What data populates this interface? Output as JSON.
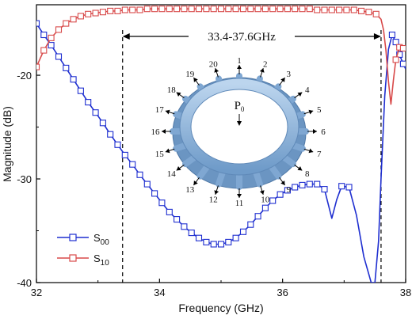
{
  "chart_data": {
    "type": "line",
    "xlabel": "Frequency (GHz)",
    "ylabel": "Magnitude (dB)",
    "xlim": [
      32,
      38
    ],
    "ylim": [
      -40,
      -13.2
    ],
    "xticks": [
      32,
      34,
      36,
      38
    ],
    "yticks": [
      -40,
      -30,
      -20
    ],
    "legend_position": "bottom-left",
    "series": [
      {
        "name": "S00",
        "name_base": "S",
        "name_sub": "00",
        "color": "#1f2fd0",
        "marker": "square",
        "x": [
          32.0,
          32.12,
          32.24,
          32.36,
          32.48,
          32.6,
          32.72,
          32.84,
          32.96,
          33.08,
          33.2,
          33.32,
          33.44,
          33.56,
          33.68,
          33.8,
          33.92,
          34.04,
          34.16,
          34.28,
          34.4,
          34.52,
          34.64,
          34.76,
          34.88,
          35.0,
          35.12,
          35.24,
          35.36,
          35.48,
          35.6,
          35.72,
          35.84,
          35.96,
          36.08,
          36.2,
          36.32,
          36.44,
          36.56,
          36.68,
          36.8,
          36.88,
          36.96,
          37.08,
          37.2,
          37.32,
          37.44,
          37.5,
          37.56,
          37.6,
          37.66,
          37.72,
          37.78,
          37.84,
          37.9,
          37.96,
          38.0
        ],
        "y": [
          -15.0,
          -16.1,
          -17.1,
          -18.2,
          -19.3,
          -20.4,
          -21.5,
          -22.6,
          -23.6,
          -24.6,
          -25.7,
          -26.7,
          -27.7,
          -28.6,
          -29.6,
          -30.5,
          -31.4,
          -32.3,
          -33.2,
          -33.9,
          -34.6,
          -35.2,
          -35.7,
          -36.1,
          -36.3,
          -36.3,
          -36.1,
          -35.7,
          -35.1,
          -34.4,
          -33.6,
          -32.8,
          -32.1,
          -31.5,
          -31.1,
          -30.8,
          -30.6,
          -30.5,
          -30.5,
          -31.0,
          -33.8,
          -32.0,
          -30.7,
          -30.8,
          -33.5,
          -37.5,
          -40.0,
          -40.0,
          -36.0,
          -30.0,
          -22.0,
          -17.5,
          -16.1,
          -16.8,
          -18.0,
          -18.9,
          -19.4
        ],
        "markers_x": [
          32.0,
          32.12,
          32.24,
          32.36,
          32.48,
          32.6,
          32.72,
          32.84,
          32.96,
          33.08,
          33.2,
          33.32,
          33.44,
          33.56,
          33.68,
          33.8,
          33.92,
          34.04,
          34.16,
          34.28,
          34.4,
          34.52,
          34.64,
          34.76,
          34.88,
          35.0,
          35.12,
          35.24,
          35.36,
          35.48,
          35.6,
          35.72,
          35.84,
          35.96,
          36.08,
          36.2,
          36.32,
          36.44,
          36.56,
          36.68,
          36.96,
          37.08,
          37.78,
          37.84,
          37.9,
          37.96
        ]
      },
      {
        "name": "S10",
        "name_base": "S",
        "name_sub": "10",
        "color": "#d84a4a",
        "marker": "square",
        "x": [
          32.0,
          32.12,
          32.24,
          32.36,
          32.48,
          32.6,
          32.72,
          32.84,
          32.96,
          33.08,
          33.2,
          33.32,
          33.44,
          33.56,
          33.68,
          33.8,
          33.92,
          34.04,
          34.16,
          34.28,
          34.4,
          34.52,
          34.64,
          34.76,
          34.88,
          35.0,
          35.12,
          35.24,
          35.36,
          35.48,
          35.6,
          35.72,
          35.84,
          35.96,
          36.08,
          36.2,
          36.32,
          36.44,
          36.56,
          36.68,
          36.8,
          36.92,
          37.04,
          37.16,
          37.28,
          37.4,
          37.52,
          37.6,
          37.64,
          37.68,
          37.72,
          37.76,
          37.8,
          37.84,
          37.9,
          37.96,
          38.0
        ],
        "y": [
          -19.2,
          -17.6,
          -16.4,
          -15.6,
          -15.0,
          -14.6,
          -14.3,
          -14.1,
          -14.0,
          -13.9,
          -13.8,
          -13.8,
          -13.7,
          -13.7,
          -13.7,
          -13.6,
          -13.6,
          -13.6,
          -13.6,
          -13.6,
          -13.6,
          -13.6,
          -13.6,
          -13.6,
          -13.6,
          -13.6,
          -13.6,
          -13.6,
          -13.6,
          -13.6,
          -13.6,
          -13.6,
          -13.6,
          -13.6,
          -13.6,
          -13.6,
          -13.6,
          -13.6,
          -13.7,
          -13.7,
          -13.7,
          -13.7,
          -13.7,
          -13.7,
          -13.8,
          -13.9,
          -14.1,
          -14.6,
          -15.6,
          -17.6,
          -20.6,
          -22.8,
          -20.5,
          -18.5,
          -17.3,
          -17.4,
          -17.5
        ],
        "markers_x": [
          32.0,
          32.12,
          32.24,
          32.36,
          32.48,
          32.6,
          32.72,
          32.84,
          32.96,
          33.08,
          33.2,
          33.32,
          33.44,
          33.56,
          33.68,
          33.8,
          33.92,
          34.04,
          34.16,
          34.28,
          34.4,
          34.52,
          34.64,
          34.76,
          34.88,
          35.0,
          35.12,
          35.24,
          35.36,
          35.48,
          35.6,
          35.72,
          35.84,
          35.96,
          36.08,
          36.2,
          36.32,
          36.44,
          36.56,
          36.68,
          36.8,
          36.92,
          37.04,
          37.16,
          37.28,
          37.4,
          37.52,
          37.84,
          37.9,
          37.96
        ]
      }
    ],
    "band": {
      "label": "33.4-37.6GHz",
      "x_start": 33.4,
      "x_end": 37.6
    },
    "inset": {
      "center_label": "P",
      "center_sub": "0",
      "ports": [
        "1",
        "2",
        "3",
        "4",
        "5",
        "6",
        "7",
        "8",
        "9",
        "10",
        "11",
        "12",
        "13",
        "14",
        "15",
        "16",
        "17",
        "18",
        "19",
        "20"
      ],
      "ring_color": "#8fb4dc"
    }
  }
}
